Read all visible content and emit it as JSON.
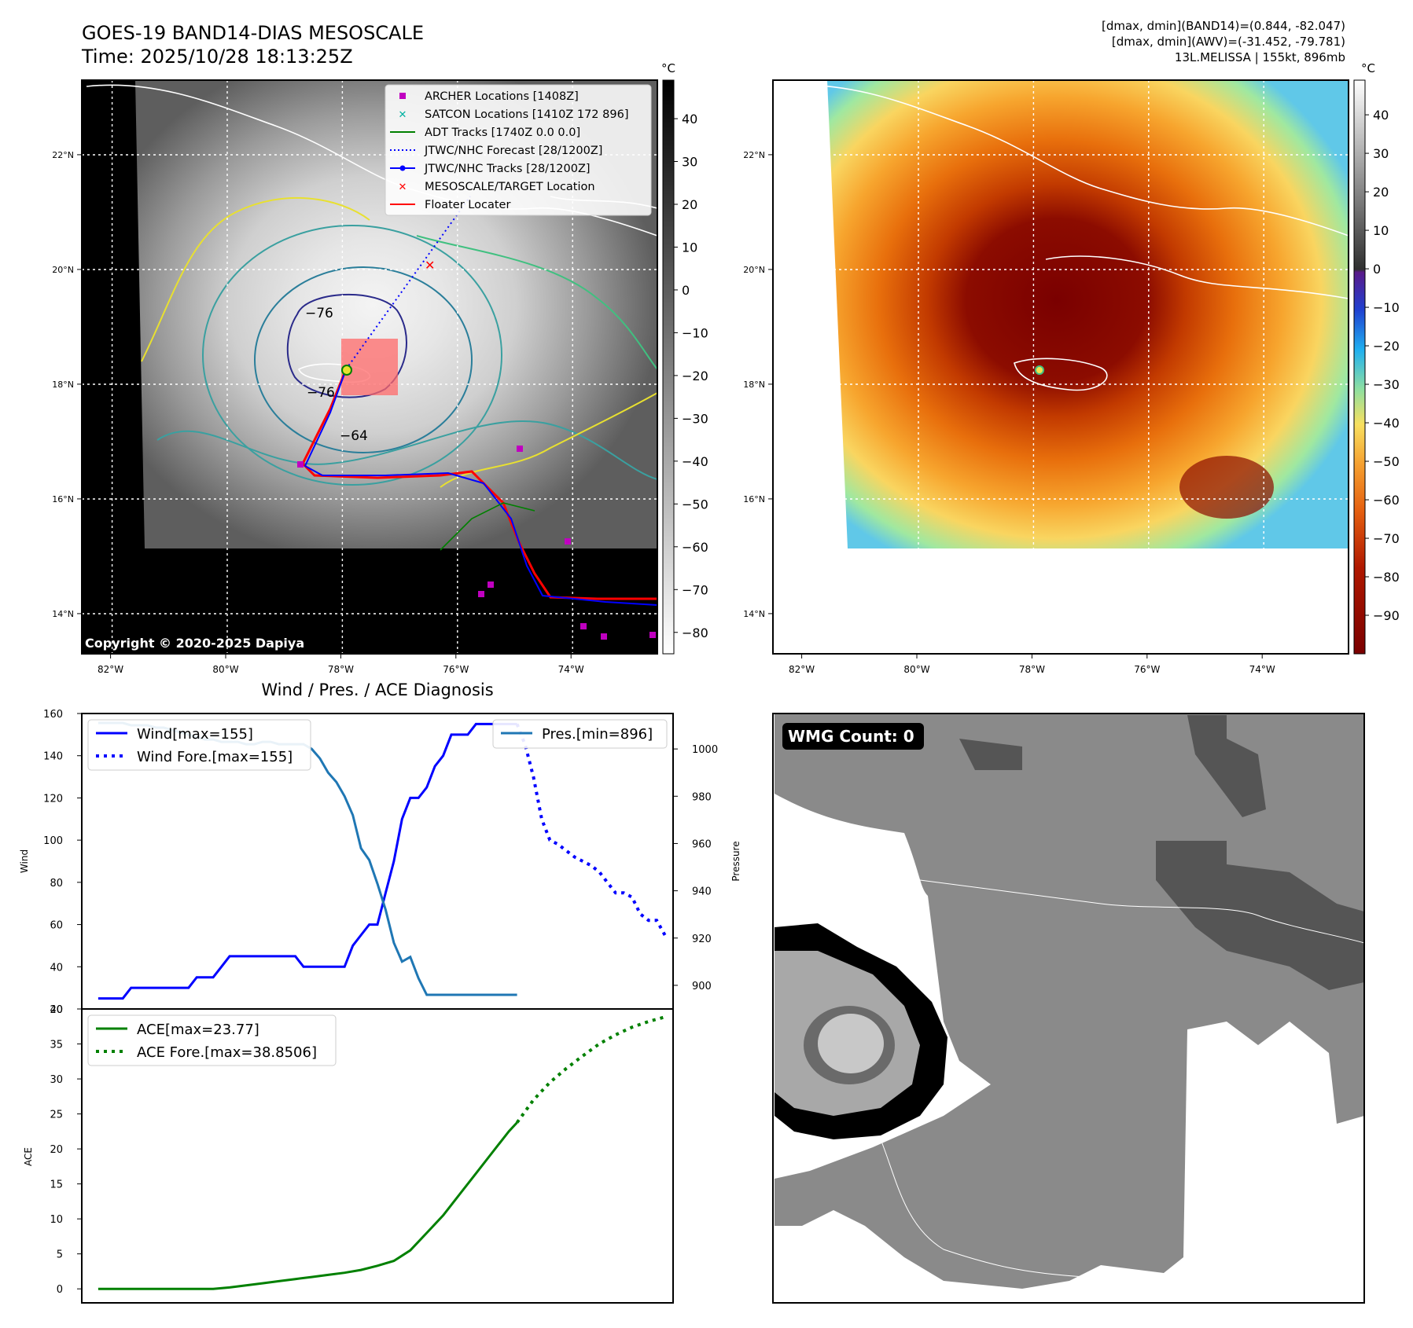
{
  "header": {
    "title_line1": "GOES-19 BAND14-DIAS MESOSCALE",
    "title_line2": "Time: 2025/10/28 18:13:25Z",
    "info_line1": "[dmax, dmin](BAND14)=(0.844, -82.047)",
    "info_line2": "[dmax, dmin](AWV)=(-31.452, -79.781)",
    "info_line3": "13L.MELISSA | 155kt, 896mb"
  },
  "map_axes": {
    "lon_ticks": [
      "82°W",
      "80°W",
      "78°W",
      "76°W",
      "74°W"
    ],
    "lat_ticks": [
      "22°N",
      "20°N",
      "18°N",
      "16°N",
      "14°N"
    ],
    "lon_values": [
      -82,
      -80,
      -78,
      -76,
      -74
    ],
    "lat_values": [
      22,
      20,
      18,
      16,
      14
    ],
    "lon_range": [
      -82.5,
      -72.5
    ],
    "lat_range": [
      13.3,
      23.3
    ]
  },
  "left_map": {
    "copyright": "Copyright © 2020-2025 Dapiya",
    "contour_labels": [
      "−76",
      "−76",
      "−64"
    ],
    "legend": [
      {
        "label": "ARCHER Locations [1408Z]",
        "color": "#c000c0",
        "marker": "square"
      },
      {
        "label": "SATCON Locations [1410Z 172 896]",
        "color": "#00b0a0",
        "marker": "x"
      },
      {
        "label": "ADT Tracks [1740Z 0.0 0.0]",
        "color": "#008000",
        "marker": "line"
      },
      {
        "label": "JTWC/NHC Forecast [28/1200Z]",
        "color": "#0000ff",
        "marker": "dotted"
      },
      {
        "label": "JTWC/NHC Tracks [28/1200Z]",
        "color": "#0000ff",
        "marker": "line-dot"
      },
      {
        "label": "MESOSCALE/TARGET Location",
        "color": "#ff0000",
        "marker": "x"
      },
      {
        "label": "Floater Locater",
        "color": "#ff0000",
        "marker": "line"
      }
    ],
    "colorbar": {
      "unit": "°C",
      "ticks": [
        "40",
        "30",
        "20",
        "10",
        "0",
        "−10",
        "−20",
        "−30",
        "−40",
        "−50",
        "−60",
        "−70",
        "−80"
      ],
      "values": [
        40,
        30,
        20,
        10,
        0,
        -10,
        -20,
        -30,
        -40,
        -50,
        -60,
        -70,
        -80
      ],
      "range": [
        -85,
        49
      ]
    }
  },
  "right_map": {
    "colorbar": {
      "unit": "°C",
      "ticks": [
        "40",
        "30",
        "20",
        "10",
        "0",
        "−10",
        "−20",
        "−30",
        "−40",
        "−50",
        "−60",
        "−70",
        "−80",
        "−90"
      ],
      "values": [
        40,
        30,
        20,
        10,
        0,
        -10,
        -20,
        -30,
        -40,
        -50,
        -60,
        -70,
        -80,
        -90
      ],
      "range": [
        -100,
        49
      ]
    }
  },
  "wmg": {
    "label": "WMG Count: 0"
  },
  "chart_data": [
    {
      "type": "line",
      "title": "Wind / Pres. / ACE Diagnosis",
      "ylabel": "Wind",
      "y2label": "Pressure",
      "ylim": [
        20,
        160
      ],
      "y2lim": [
        890,
        1015
      ],
      "yticks": [
        20,
        40,
        60,
        80,
        100,
        120,
        140,
        160
      ],
      "y2ticks": [
        900,
        920,
        940,
        960,
        980,
        1000
      ],
      "legend_left": [
        "Wind[max=155]",
        "Wind Fore.[max=155]"
      ],
      "legend_right": [
        "Pres.[min=896]"
      ],
      "series": [
        {
          "name": "Wind[max=155]",
          "color": "#0000ff",
          "style": "solid",
          "axis": "left",
          "x": [
            0,
            2,
            3,
            4,
            5,
            6,
            7,
            8,
            9,
            10,
            11,
            12,
            13,
            14,
            15,
            16,
            17,
            18,
            19,
            20,
            21,
            22,
            23,
            24,
            25,
            26,
            27,
            28,
            29,
            30,
            31,
            32,
            33,
            34,
            35,
            36,
            37,
            38,
            39,
            40,
            41,
            42,
            43,
            44,
            45,
            46,
            47,
            48,
            49,
            50,
            51
          ],
          "values": [
            25,
            25,
            25,
            30,
            30,
            30,
            30,
            30,
            30,
            30,
            30,
            35,
            35,
            35,
            40,
            45,
            45,
            45,
            45,
            45,
            45,
            45,
            45,
            45,
            40,
            40,
            40,
            40,
            40,
            40,
            50,
            55,
            60,
            60,
            75,
            90,
            110,
            120,
            120,
            125,
            135,
            140,
            150,
            150,
            150,
            155,
            155,
            155,
            155,
            155,
            155
          ]
        },
        {
          "name": "Wind Fore.[max=155]",
          "color": "#0000ff",
          "style": "dotted",
          "axis": "left",
          "x": [
            51,
            52,
            53,
            54,
            55,
            56,
            57,
            58,
            59,
            60,
            61,
            62,
            63,
            64,
            65,
            66,
            67,
            68,
            69
          ],
          "values": [
            155,
            145,
            130,
            110,
            100,
            98,
            95,
            92,
            90,
            88,
            85,
            80,
            75,
            75,
            73,
            65,
            62,
            62,
            55
          ]
        },
        {
          "name": "Pres.[min=896]",
          "color": "#1f77b4",
          "style": "solid",
          "axis": "right",
          "x": [
            0,
            2,
            3,
            4,
            5,
            6,
            7,
            8,
            9,
            10,
            11,
            12,
            13,
            14,
            15,
            16,
            17,
            18,
            19,
            20,
            21,
            22,
            23,
            24,
            25,
            26,
            27,
            28,
            29,
            30,
            31,
            32,
            33,
            34,
            35,
            36,
            37,
            38,
            39,
            40,
            41,
            42,
            43,
            44,
            45,
            46,
            47,
            48,
            49,
            50,
            51
          ],
          "values": [
            1011,
            1011,
            1011,
            1010,
            1010,
            1010,
            1009,
            1009,
            1008,
            1007,
            1006,
            1005,
            1004,
            1004,
            1003,
            1003,
            1003,
            1002,
            1002,
            1003,
            1003,
            1002,
            1002,
            1002,
            1002,
            1000,
            996,
            990,
            986,
            980,
            972,
            958,
            953,
            943,
            932,
            918,
            910,
            912,
            903,
            896,
            896,
            896,
            896,
            896,
            896,
            896,
            896,
            896,
            896,
            896,
            896
          ]
        }
      ]
    },
    {
      "type": "line",
      "ylabel": "ACE",
      "ylim": [
        -2,
        40
      ],
      "yticks": [
        0,
        5,
        10,
        15,
        20,
        25,
        30,
        35,
        40
      ],
      "legend": [
        "ACE[max=23.77]",
        "ACE Fore.[max=38.8506]"
      ],
      "series": [
        {
          "name": "ACE[max=23.77]",
          "color": "#008000",
          "style": "solid",
          "x": [
            0,
            4,
            8,
            12,
            14,
            16,
            18,
            20,
            22,
            24,
            26,
            28,
            30,
            32,
            34,
            36,
            38,
            40,
            42,
            44,
            46,
            48,
            50,
            51
          ],
          "values": [
            0,
            0,
            0,
            0,
            0,
            0.2,
            0.5,
            0.8,
            1.1,
            1.4,
            1.7,
            2.0,
            2.3,
            2.7,
            3.3,
            4.0,
            5.5,
            8.0,
            10.5,
            13.5,
            16.5,
            19.5,
            22.5,
            23.77
          ]
        },
        {
          "name": "ACE Fore.[max=38.8506]",
          "color": "#008000",
          "style": "dotted",
          "x": [
            51,
            53,
            55,
            57,
            59,
            61,
            63,
            65,
            67,
            69
          ],
          "values": [
            23.77,
            27,
            29.5,
            31.5,
            33.3,
            35,
            36.3,
            37.4,
            38.2,
            38.85
          ]
        }
      ]
    }
  ]
}
